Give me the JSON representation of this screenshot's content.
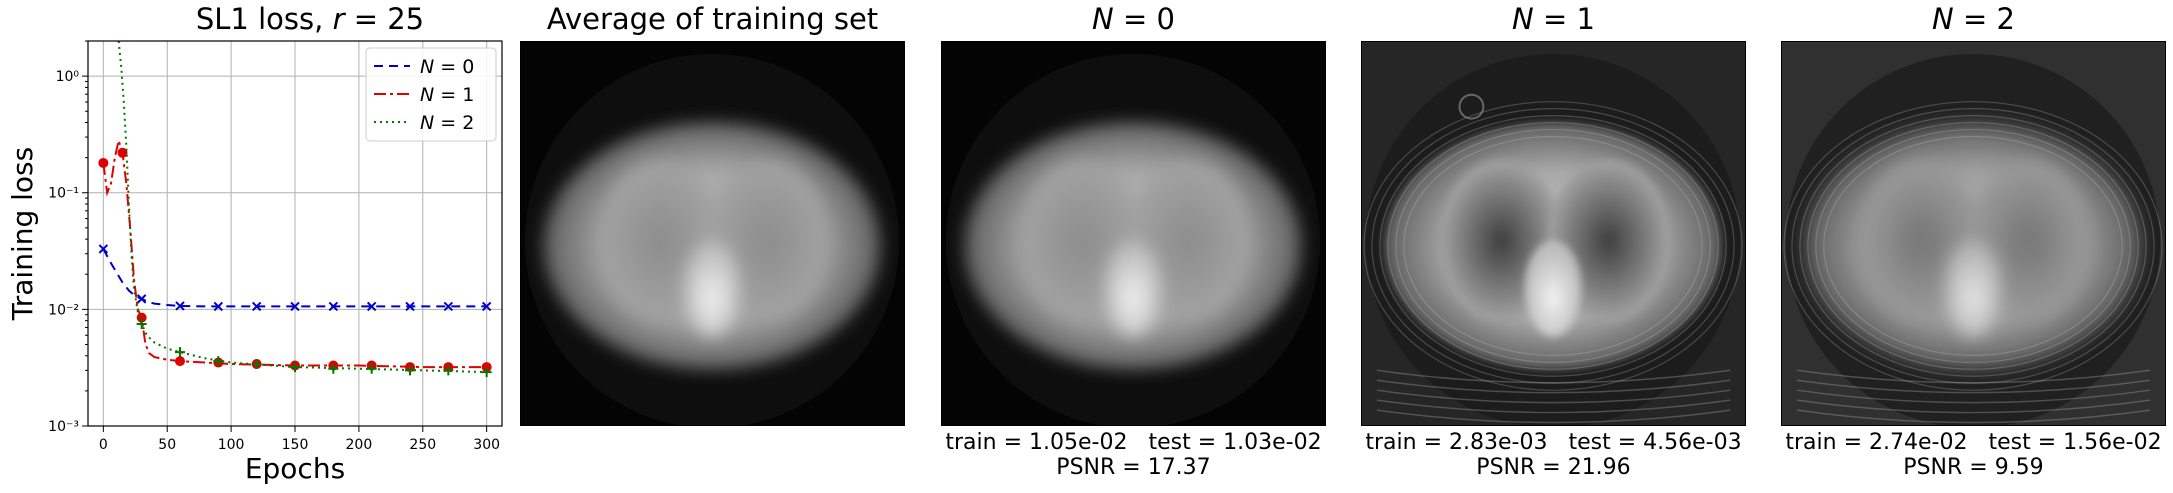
{
  "chart_data": {
    "type": "line",
    "title": "SL1 loss, r = 25",
    "title_prefix": "SL1 loss, ",
    "title_var": "r",
    "title_suffix": " = 25",
    "xlabel": "Epochs",
    "ylabel": "Training loss",
    "xlim": [
      -12,
      312
    ],
    "ylim": [
      0.001,
      2.0
    ],
    "yscale": "log",
    "grid": true,
    "legend_position": "top-right",
    "xticks": [
      0,
      50,
      100,
      150,
      200,
      250,
      300
    ],
    "yticks": [
      {
        "value": 0.001,
        "label": "10⁻³"
      },
      {
        "value": 0.01,
        "label": "10⁻²"
      },
      {
        "value": 0.1,
        "label": "10⁻¹"
      },
      {
        "value": 1,
        "label": "10⁰"
      }
    ],
    "series": [
      {
        "name": "N = 0",
        "var": "N",
        "value_label": " = 0",
        "color": "#0000cc",
        "dash": "9,6",
        "marker": "x",
        "x": [
          0,
          5,
          10,
          15,
          20,
          25,
          30,
          35,
          40,
          50,
          60,
          80,
          100,
          150,
          200,
          250,
          300
        ],
        "y": [
          0.033,
          0.026,
          0.021,
          0.017,
          0.0145,
          0.013,
          0.0123,
          0.0116,
          0.0112,
          0.0109,
          0.0107,
          0.0106,
          0.0106,
          0.0106,
          0.0106,
          0.0106,
          0.0106
        ],
        "marker_x": [
          0,
          30,
          60,
          90,
          120,
          150,
          180,
          210,
          240,
          270,
          300
        ],
        "marker_y": [
          0.033,
          0.0123,
          0.0107,
          0.0106,
          0.0106,
          0.0106,
          0.0106,
          0.0106,
          0.0106,
          0.0106,
          0.0106
        ]
      },
      {
        "name": "N = 1",
        "var": "N",
        "value_label": " = 1",
        "color": "#e00000",
        "dash": "12,4,3,4",
        "marker": "o",
        "x": [
          0,
          3,
          6,
          9,
          12,
          15,
          18,
          21,
          24,
          27,
          30,
          33,
          36,
          40,
          50,
          60,
          80,
          100,
          150,
          200,
          250,
          300
        ],
        "y": [
          0.18,
          0.1,
          0.12,
          0.2,
          0.28,
          0.22,
          0.12,
          0.05,
          0.018,
          0.01,
          0.0085,
          0.005,
          0.0042,
          0.0039,
          0.0037,
          0.0036,
          0.0035,
          0.0034,
          0.0033,
          0.0033,
          0.0032,
          0.0032
        ],
        "marker_x": [
          0,
          15,
          30,
          60,
          90,
          120,
          150,
          180,
          210,
          240,
          270,
          300
        ],
        "marker_y": [
          0.18,
          0.22,
          0.0085,
          0.0036,
          0.0035,
          0.0034,
          0.0033,
          0.0033,
          0.0033,
          0.0032,
          0.0032,
          0.0032
        ]
      },
      {
        "name": "N = 2",
        "var": "N",
        "value_label": " = 2",
        "color": "#007700",
        "dash": "2,4",
        "marker": "+",
        "x": [
          12,
          14,
          16,
          18,
          20,
          22,
          24,
          27,
          30,
          34,
          40,
          50,
          60,
          80,
          100,
          150,
          200,
          250,
          300
        ],
        "y": [
          2.0,
          1.2,
          0.6,
          0.25,
          0.08,
          0.03,
          0.015,
          0.0095,
          0.0075,
          0.006,
          0.0052,
          0.0046,
          0.0043,
          0.0038,
          0.0035,
          0.0032,
          0.0031,
          0.003,
          0.0029
        ],
        "marker_x": [
          30,
          60,
          90,
          120,
          150,
          180,
          210,
          240,
          270,
          300
        ],
        "marker_y": [
          0.0075,
          0.0043,
          0.0036,
          0.0034,
          0.0032,
          0.0031,
          0.0031,
          0.003,
          0.003,
          0.0029
        ]
      }
    ]
  },
  "panels": [
    {
      "title": "Average of training set",
      "var": "",
      "suffix": "",
      "train": "",
      "test": "",
      "psnr": "",
      "bg": "#040404",
      "brightness": 1.0,
      "artifact": 0
    },
    {
      "title": "N = 0",
      "var": "N",
      "suffix": " = 0",
      "train": "train = 1.05e-02",
      "test": "test = 1.03e-02",
      "psnr": "PSNR = 17.37",
      "bg": "#040404",
      "brightness": 1.0,
      "artifact": 0
    },
    {
      "title": "N = 1",
      "var": "N",
      "suffix": " = 1",
      "train": "train = 2.83e-03",
      "test": "test = 4.56e-03",
      "psnr": "PSNR = 21.96",
      "bg": "#262626",
      "brightness": 1.0,
      "artifact": 1
    },
    {
      "title": "N = 2",
      "var": "N",
      "suffix": " = 2",
      "train": "train = 2.74e-02",
      "test": "test = 1.56e-02",
      "psnr": "PSNR = 9.59",
      "bg": "#303030",
      "brightness": 0.95,
      "artifact": 2
    }
  ]
}
